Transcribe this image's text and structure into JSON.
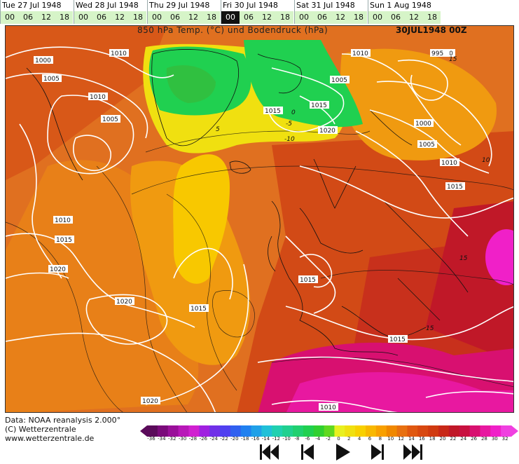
{
  "timebar": {
    "days": [
      {
        "label": "Tue 27 Jul 1948",
        "hours": [
          "00",
          "06",
          "12",
          "18"
        ]
      },
      {
        "label": "Wed 28 Jul 1948",
        "hours": [
          "00",
          "06",
          "12",
          "18"
        ]
      },
      {
        "label": "Thu 29 Jul 1948",
        "hours": [
          "00",
          "06",
          "12",
          "18"
        ]
      },
      {
        "label": "Fri 30 Jul 1948",
        "hours": [
          "00",
          "06",
          "12",
          "18"
        ]
      },
      {
        "label": "Sat 31 Jul 1948",
        "hours": [
          "00",
          "06",
          "12",
          "18"
        ]
      },
      {
        "label": "Sun 1 Aug 1948",
        "hours": [
          "00",
          "06",
          "12",
          "18"
        ]
      }
    ],
    "active_day": 3,
    "active_hour": 0
  },
  "map": {
    "title": "850 hPa Temp. (°C) und Bodendruck (hPa)",
    "stamp": "30JUL1948 00Z",
    "isobar_labels": [
      "1000",
      "1005",
      "1010",
      "1010",
      "1005",
      "1010",
      "1005",
      "1010",
      "995",
      "1000",
      "1005",
      "1010",
      "1015",
      "1015",
      "1015",
      "1020",
      "1010",
      "1015",
      "1020",
      "1020",
      "1015",
      "1015",
      "1015",
      "1020",
      "1010"
    ],
    "temp_labels": [
      "0",
      "-5",
      "-10",
      "5",
      "10",
      "15",
      "15",
      "15"
    ]
  },
  "footer": {
    "data_line": "Data: NOAA reanalysis 2.000°",
    "copyright": "(C) Wetterzentrale",
    "url": "www.wetterzentrale.de"
  },
  "scale": {
    "ticks": [
      "-36",
      "-34",
      "-32",
      "-30",
      "-28",
      "-26",
      "-24",
      "-22",
      "-20",
      "-18",
      "-16",
      "-14",
      "-12",
      "-10",
      "-8",
      "-6",
      "-4",
      "-2",
      "0",
      "2",
      "4",
      "6",
      "8",
      "10",
      "12",
      "14",
      "16",
      "18",
      "20",
      "22",
      "24",
      "26",
      "28",
      "30",
      "32"
    ],
    "colors": [
      "#5a0a5a",
      "#7a0a7a",
      "#9a109a",
      "#b818b8",
      "#d020d0",
      "#a020e0",
      "#7030e8",
      "#5040f0",
      "#3060f0",
      "#2080f0",
      "#20a0e8",
      "#20c0d8",
      "#20d0b0",
      "#20d090",
      "#20d070",
      "#20d050",
      "#30d030",
      "#60d820",
      "#e8f020",
      "#f0e010",
      "#f8d000",
      "#f8b800",
      "#f8a000",
      "#f08800",
      "#e87010",
      "#e05810",
      "#d84810",
      "#d03a10",
      "#c82818",
      "#c01828",
      "#c81040",
      "#d81070",
      "#e818a0",
      "#f020c8",
      "#f040e0"
    ]
  },
  "nav": {
    "first": "first-frame",
    "prev": "previous-frame",
    "play": "play",
    "next": "next-frame",
    "last": "last-frame"
  }
}
